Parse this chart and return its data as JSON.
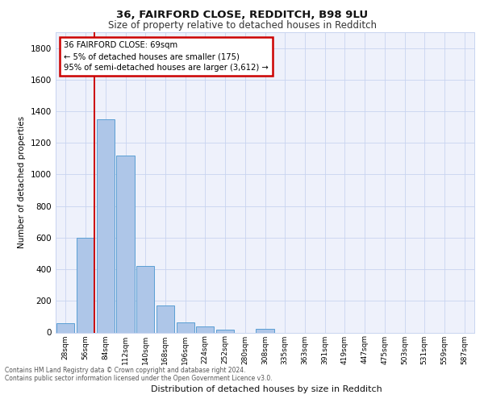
{
  "title1": "36, FAIRFORD CLOSE, REDDITCH, B98 9LU",
  "title2": "Size of property relative to detached houses in Redditch",
  "xlabel": "Distribution of detached houses by size in Redditch",
  "ylabel": "Number of detached properties",
  "categories": [
    "28sqm",
    "56sqm",
    "84sqm",
    "112sqm",
    "140sqm",
    "168sqm",
    "196sqm",
    "224sqm",
    "252sqm",
    "280sqm",
    "308sqm",
    "335sqm",
    "363sqm",
    "391sqm",
    "419sqm",
    "447sqm",
    "475sqm",
    "503sqm",
    "531sqm",
    "559sqm",
    "587sqm"
  ],
  "values": [
    60,
    600,
    1350,
    1120,
    420,
    170,
    65,
    40,
    20,
    0,
    25,
    0,
    0,
    0,
    0,
    0,
    0,
    0,
    0,
    0,
    0
  ],
  "bar_color": "#aec6e8",
  "bar_edge_color": "#5a9fd4",
  "annotation_title": "36 FAIRFORD CLOSE: 69sqm",
  "annotation_line1": "← 5% of detached houses are smaller (175)",
  "annotation_line2": "95% of semi-detached houses are larger (3,612) →",
  "annotation_box_color": "#ffffff",
  "annotation_box_edge": "#cc0000",
  "vline_color": "#cc0000",
  "vline_x": 1.46,
  "ylim": [
    0,
    1900
  ],
  "yticks": [
    0,
    200,
    400,
    600,
    800,
    1000,
    1200,
    1400,
    1600,
    1800
  ],
  "bg_color": "#eef1fb",
  "footer1": "Contains HM Land Registry data © Crown copyright and database right 2024.",
  "footer2": "Contains public sector information licensed under the Open Government Licence v3.0."
}
